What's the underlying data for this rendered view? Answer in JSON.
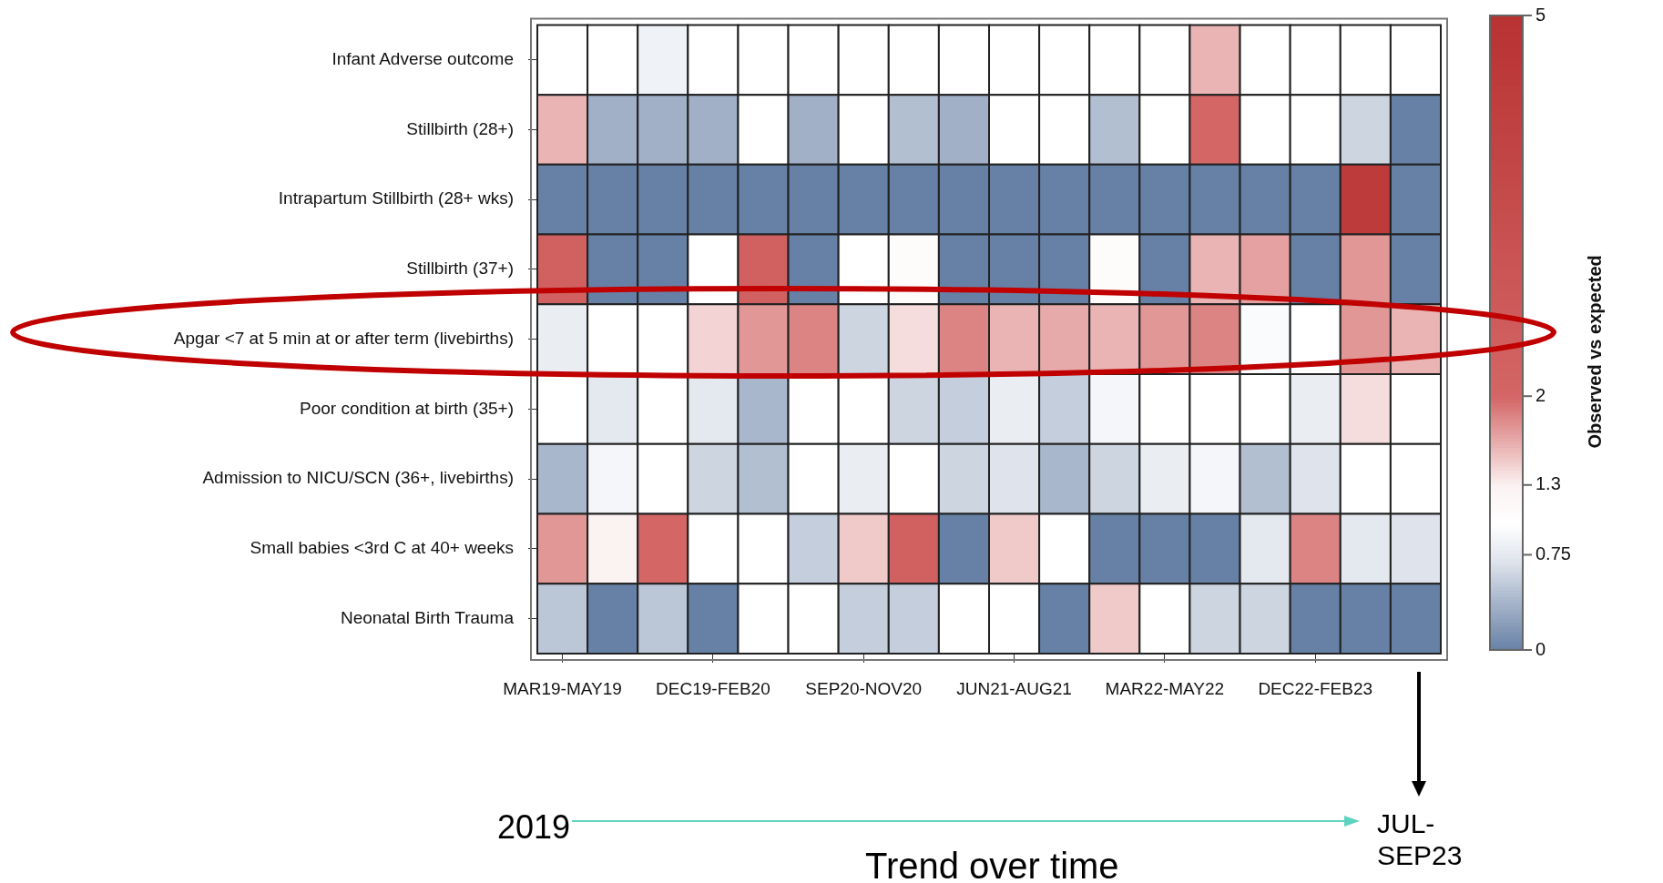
{
  "chart_data": {
    "type": "heatmap",
    "categories": [
      "MAR19-MAY19",
      null,
      null,
      "DEC19-FEB20",
      null,
      null,
      "SEP20-NOV20",
      null,
      null,
      "JUN21-AUG21",
      null,
      null,
      "MAR22-MAY22",
      null,
      null,
      "DEC22-FEB23",
      null,
      null
    ],
    "y_categories": [
      "Infant Adverse outcome",
      "Stillbirth (28+)",
      "Intrapartum Stillbirth (28+ wks)",
      "Stillbirth (37+)",
      "Apgar <7 at 5 min at or after term (livebirths)",
      "Poor condition at birth (35+)",
      "Admission to NICU/SCN (36+, livebirths)",
      "Small babies <3rd C at 40+ weeks",
      "Neonatal Birth Trauma"
    ],
    "cells": [
      [
        1,
        1,
        0.85,
        1,
        1,
        1,
        1,
        1,
        1,
        1,
        1,
        1,
        1,
        1.6,
        1,
        1,
        1,
        1
      ],
      [
        1.6,
        0.35,
        0.35,
        0.35,
        1,
        0.35,
        1,
        0.45,
        0.35,
        1,
        1,
        0.45,
        1,
        2,
        1,
        1,
        0.6,
        0
      ],
      [
        0,
        0,
        0,
        0,
        0,
        0,
        0,
        0,
        0,
        0,
        0,
        0,
        0,
        0,
        0,
        0,
        4.5,
        0
      ],
      [
        2.3,
        0,
        0,
        1,
        2.3,
        0,
        1,
        1.1,
        0,
        0,
        0,
        1.1,
        0,
        1.6,
        1.7,
        0,
        1.75,
        0
      ],
      [
        0.8,
        1,
        1,
        1.45,
        1.75,
        1.85,
        0.6,
        1.4,
        1.85,
        1.6,
        1.65,
        1.6,
        1.75,
        1.85,
        0.95,
        1,
        1.75,
        1.6
      ],
      [
        1,
        0.75,
        1,
        0.75,
        0.4,
        1,
        1,
        0.6,
        0.55,
        0.8,
        0.55,
        0.9,
        1,
        1,
        1,
        0.8,
        1.4,
        1
      ],
      [
        0.4,
        0.9,
        1,
        0.6,
        0.45,
        1,
        0.8,
        1,
        0.6,
        0.7,
        0.4,
        0.6,
        0.8,
        0.9,
        0.45,
        0.7,
        1,
        1
      ],
      [
        1.75,
        1.3,
        2,
        1,
        1,
        0.55,
        1.5,
        2.3,
        0,
        1.5,
        1,
        0,
        0,
        0,
        0.75,
        1.85,
        0.75,
        0.7
      ],
      [
        0.5,
        0,
        0.5,
        0,
        1,
        1,
        0.55,
        0.55,
        1,
        1,
        0,
        1.5,
        1,
        0.6,
        0.6,
        0,
        0,
        0
      ]
    ],
    "clim": [
      0,
      5
    ],
    "cticks": [
      0,
      0.75,
      1.3,
      2,
      5
    ],
    "clabel": "Observed vs expected",
    "annotations": [
      "2019",
      "Trend over time",
      "JUL-SEP23"
    ]
  }
}
